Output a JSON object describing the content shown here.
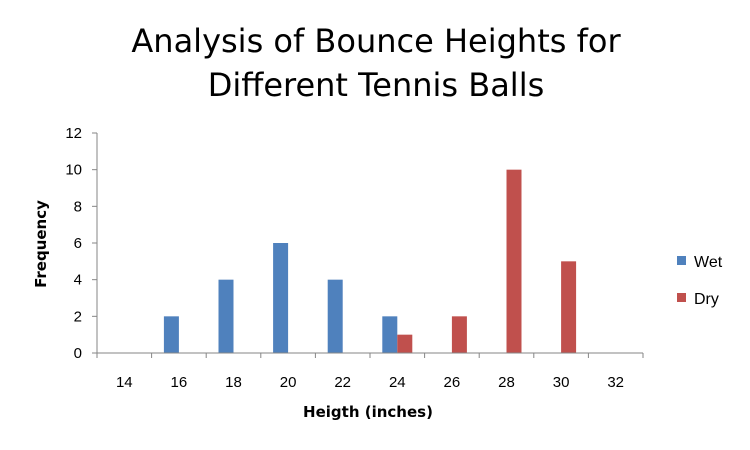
{
  "chart_data": {
    "type": "bar",
    "title_lines": [
      "Analysis of Bounce Heights for",
      "Different Tennis Balls"
    ],
    "xlabel": "Heigth (inches)",
    "ylabel": "Frequency",
    "categories": [
      "14",
      "16",
      "18",
      "20",
      "22",
      "24",
      "26",
      "28",
      "30",
      "32"
    ],
    "series": [
      {
        "name": "Wet",
        "color": "#4f81bd",
        "values": [
          0,
          2,
          4,
          6,
          4,
          2,
          0,
          0,
          0,
          0
        ]
      },
      {
        "name": "Dry",
        "color": "#c0504d",
        "values": [
          0,
          0,
          0,
          0,
          0,
          1,
          2,
          10,
          5,
          0
        ]
      }
    ],
    "ylim": [
      0,
      12
    ],
    "yticks": [
      "0",
      "2",
      "4",
      "6",
      "8",
      "10",
      "12"
    ],
    "grid": false,
    "legend_position": "right"
  }
}
